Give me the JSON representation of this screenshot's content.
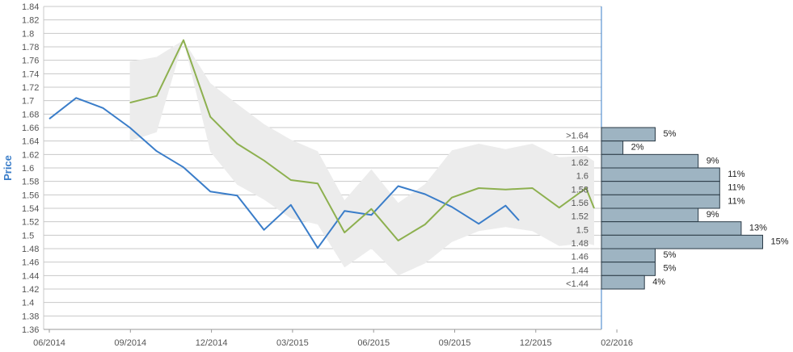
{
  "chart_data": {
    "type": "line",
    "ylabel": "Price",
    "ylim": [
      1.36,
      1.84
    ],
    "ytick_step": 0.02,
    "x_ticks": [
      "06/2014",
      "09/2014",
      "12/2014",
      "03/2015",
      "06/2015",
      "09/2015",
      "12/2015",
      "02/2016"
    ],
    "series": [
      {
        "color": "#3a7dc9",
        "points": [
          {
            "x": 0,
            "y": 1.673
          },
          {
            "x": 1,
            "y": 1.704
          },
          {
            "x": 2,
            "y": 1.689
          },
          {
            "x": 3,
            "y": 1.66
          },
          {
            "x": 4,
            "y": 1.625
          },
          {
            "x": 5,
            "y": 1.601
          },
          {
            "x": 6,
            "y": 1.565
          },
          {
            "x": 7,
            "y": 1.559
          },
          {
            "x": 8,
            "y": 1.508
          },
          {
            "x": 9,
            "y": 1.545
          },
          {
            "x": 10,
            "y": 1.481
          },
          {
            "x": 11,
            "y": 1.536
          },
          {
            "x": 12,
            "y": 1.53
          },
          {
            "x": 13,
            "y": 1.573
          },
          {
            "x": 14,
            "y": 1.561
          },
          {
            "x": 15,
            "y": 1.542
          },
          {
            "x": 16,
            "y": 1.517
          },
          {
            "x": 17,
            "y": 1.544
          },
          {
            "x": 17.5,
            "y": 1.522
          }
        ]
      },
      {
        "color": "#8db04f",
        "points": [
          {
            "x": 3,
            "y": 1.697
          },
          {
            "x": 4,
            "y": 1.707
          },
          {
            "x": 5,
            "y": 1.79
          },
          {
            "x": 6,
            "y": 1.676
          },
          {
            "x": 7,
            "y": 1.636
          },
          {
            "x": 8,
            "y": 1.611
          },
          {
            "x": 9,
            "y": 1.582
          },
          {
            "x": 10,
            "y": 1.577
          },
          {
            "x": 11,
            "y": 1.504
          },
          {
            "x": 12,
            "y": 1.539
          },
          {
            "x": 13,
            "y": 1.492
          },
          {
            "x": 14,
            "y": 1.516
          },
          {
            "x": 15,
            "y": 1.556
          },
          {
            "x": 16,
            "y": 1.57
          },
          {
            "x": 17,
            "y": 1.568
          },
          {
            "x": 18,
            "y": 1.57
          },
          {
            "x": 19,
            "y": 1.541
          },
          {
            "x": 20,
            "y": 1.57
          },
          {
            "x": 20.3,
            "y": 1.54
          }
        ]
      }
    ],
    "band": {
      "color": "#ececec",
      "x": [
        3,
        4,
        5,
        6,
        7,
        8,
        9,
        10,
        11,
        12,
        13,
        14,
        15,
        16,
        17,
        18,
        19,
        20,
        20.3
      ],
      "upper": [
        1.758,
        1.765,
        1.79,
        1.726,
        1.695,
        1.665,
        1.642,
        1.625,
        1.552,
        1.598,
        1.548,
        1.576,
        1.626,
        1.636,
        1.628,
        1.636,
        1.616,
        1.618,
        1.61
      ],
      "lower": [
        1.64,
        1.653,
        1.79,
        1.624,
        1.575,
        1.553,
        1.525,
        1.516,
        1.452,
        1.48,
        1.44,
        1.458,
        1.49,
        1.506,
        1.512,
        1.506,
        1.484,
        1.488,
        1.485
      ]
    },
    "histogram": {
      "bins": [
        {
          "label": ">1.64",
          "y": 1.64,
          "pct": 5,
          "pct_label": "5%"
        },
        {
          "label": "1.64",
          "y": 1.62,
          "pct": 2,
          "pct_label": "2%"
        },
        {
          "label": "1.62",
          "y": 1.6,
          "pct": 9,
          "pct_label": "9%"
        },
        {
          "label": "1.6",
          "y": 1.58,
          "pct": 11,
          "pct_label": "11%"
        },
        {
          "label": "1.58",
          "y": 1.56,
          "pct": 11,
          "pct_label": "11%"
        },
        {
          "label": "1.56",
          "y": 1.54,
          "pct": 11,
          "pct_label": "11%"
        },
        {
          "label": "1.52",
          "y": 1.52,
          "pct": 9,
          "pct_label": "9%"
        },
        {
          "label": "1.5",
          "y": 1.5,
          "pct": 13,
          "pct_label": "13%"
        },
        {
          "label": "1.48",
          "y": 1.48,
          "pct": 15,
          "pct_label": "15%"
        },
        {
          "label": "1.46",
          "y": 1.46,
          "pct": 5,
          "pct_label": "5%"
        },
        {
          "label": "1.44",
          "y": 1.44,
          "pct": 5,
          "pct_label": "5%"
        },
        {
          "label": "<1.44",
          "y": 1.42,
          "pct": 4,
          "pct_label": "4%"
        }
      ]
    }
  }
}
